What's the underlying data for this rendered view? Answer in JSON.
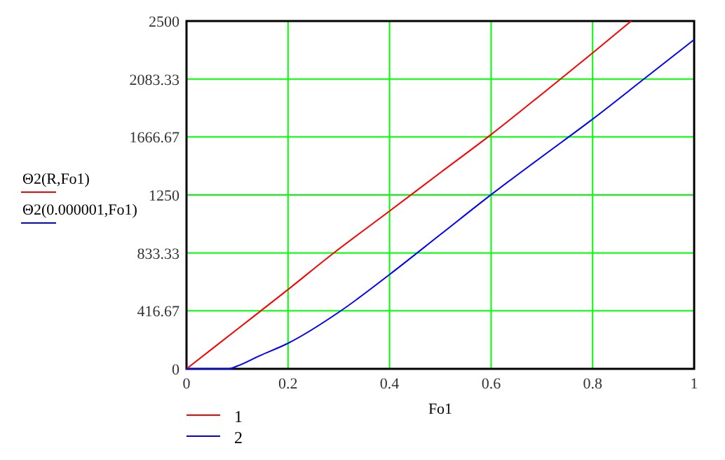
{
  "chart_data": {
    "type": "line",
    "xlabel": "Fo1",
    "ylabel": "Θ2(R,Fo1)\nΘ2(0.000001,Fo1)",
    "xlim": [
      0,
      1
    ],
    "ylim": [
      0,
      2500
    ],
    "xticks": [
      0,
      0.2,
      0.4,
      0.6,
      0.8,
      1
    ],
    "yticks": [
      0,
      416.67,
      833.33,
      1250,
      1666.67,
      2083.33,
      2500
    ],
    "grid": true,
    "legend": "bottom left",
    "series": [
      {
        "name": "1",
        "color": "#ff0000",
        "x": [
          0,
          0.1,
          0.2,
          0.29,
          0.4,
          0.5,
          0.6,
          0.7,
          0.8,
          0.876
        ],
        "values": [
          0,
          285,
          570,
          833,
          1134,
          1410,
          1684,
          1975,
          2271,
          2500
        ]
      },
      {
        "name": "2",
        "color": "#0000ff",
        "x": [
          0,
          0.083,
          0.1,
          0.144,
          0.2,
          0.304,
          0.4,
          0.5,
          0.6,
          0.7,
          0.8,
          0.9,
          1
        ],
        "values": [
          0,
          0,
          20,
          94,
          184,
          417,
          678,
          965,
          1252,
          1525,
          1795,
          2080,
          2366
        ]
      }
    ]
  }
}
